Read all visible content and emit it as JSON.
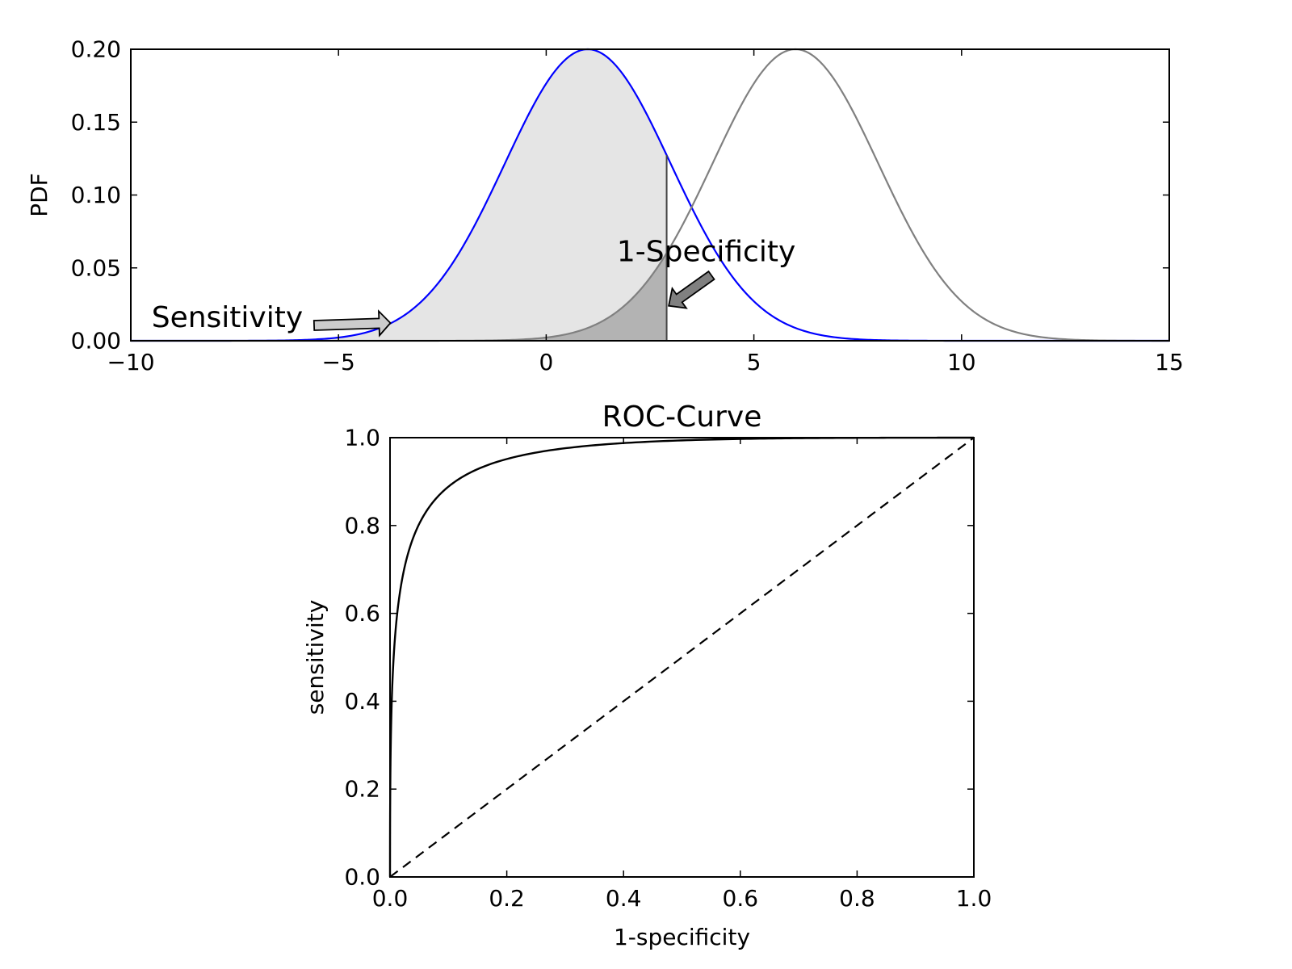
{
  "chart_data": [
    {
      "type": "line",
      "xlabel": "",
      "ylabel": "PDF",
      "xlim": [
        -10,
        15
      ],
      "ylim": [
        0,
        0.2
      ],
      "xticks": [
        -10,
        -5,
        0,
        5,
        10,
        15
      ],
      "xtick_labels": [
        "−10",
        "−5",
        "0",
        "5",
        "10",
        "15"
      ],
      "yticks": [
        0,
        0.05,
        0.1,
        0.15,
        0.2
      ],
      "ytick_labels": [
        "0.00",
        "0.05",
        "0.10",
        "0.15",
        "0.20"
      ],
      "grid": false,
      "threshold": 2.9,
      "series": [
        {
          "mean": 1,
          "sd": 2,
          "peak": 0.2,
          "color": "#0000ff",
          "fill": "#e5e5e5"
        },
        {
          "mean": 6,
          "sd": 2,
          "peak": 0.2,
          "color": "#808080",
          "fill": "#b3b3b3"
        }
      ],
      "annotations": [
        {
          "text": "Sensitivity",
          "x": -9.5,
          "y": 0.0095,
          "arrow_x": -3.75,
          "arrow_y": 0.0122,
          "arrow_color": "#cccccc"
        },
        {
          "text": "1-Specificity",
          "x": 1.7,
          "y": 0.0545,
          "arrow_x": 2.95,
          "arrow_y": 0.024,
          "arrow_color": "#808080"
        }
      ]
    },
    {
      "type": "line",
      "title": "ROC-Curve",
      "xlabel": "1-specificity",
      "ylabel": "sensitivity",
      "xlim": [
        0,
        1
      ],
      "ylim": [
        0,
        1
      ],
      "xticks": [
        0,
        0.2,
        0.4,
        0.6,
        0.8,
        1
      ],
      "xtick_labels": [
        "0.0",
        "0.2",
        "0.4",
        "0.6",
        "0.8",
        "1.0"
      ],
      "yticks": [
        0,
        0.2,
        0.4,
        0.6,
        0.8,
        1
      ],
      "ytick_labels": [
        "0.0",
        "0.2",
        "0.4",
        "0.6",
        "0.8",
        "1.0"
      ],
      "grid": false,
      "series": [
        {
          "style": "solid",
          "color": "#000000",
          "d_prime": 2.5,
          "x": [
            0,
            0.01,
            0.02,
            0.05,
            0.1,
            0.2,
            0.4,
            0.6,
            0.8,
            1.0
          ],
          "y": [
            0,
            0.66,
            0.76,
            0.88,
            0.94,
            0.97,
            0.99,
            0.995,
            0.999,
            1.0
          ]
        },
        {
          "style": "dashed",
          "color": "#000000",
          "x": [
            0,
            1
          ],
          "y": [
            0,
            1
          ]
        }
      ]
    }
  ]
}
